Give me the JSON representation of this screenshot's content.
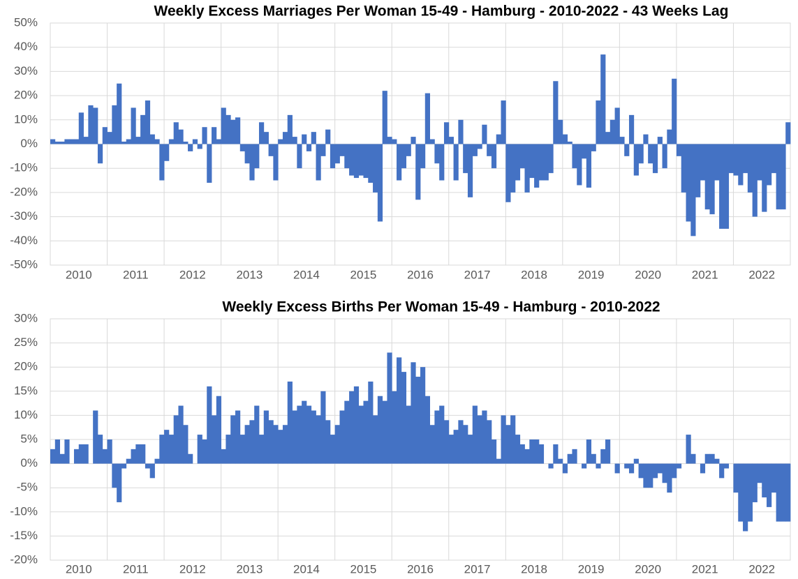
{
  "chart_data": [
    {
      "type": "bar",
      "title": "Weekly Excess Marriages Per Woman 15-49 - Hamburg - 2010-2022 - 43 Weeks Lag",
      "color": "#4472c4",
      "grid": true,
      "ylim": [
        -50,
        50
      ],
      "yticks": [
        {
          "value": -50,
          "label": "-50%"
        },
        {
          "value": -40,
          "label": "-40%"
        },
        {
          "value": -30,
          "label": "-30%"
        },
        {
          "value": -20,
          "label": "-20%"
        },
        {
          "value": -10,
          "label": "-10%"
        },
        {
          "value": 0,
          "label": "0%"
        },
        {
          "value": 10,
          "label": "10%"
        },
        {
          "value": 20,
          "label": "20%"
        },
        {
          "value": 30,
          "label": "30%"
        },
        {
          "value": 40,
          "label": "40%"
        },
        {
          "value": 50,
          "label": "50%"
        }
      ],
      "xlim": [
        2010,
        2023
      ],
      "xticks": [
        {
          "value": 2010.5,
          "label": "2010"
        },
        {
          "value": 2011.5,
          "label": "2011"
        },
        {
          "value": 2012.5,
          "label": "2012"
        },
        {
          "value": 2013.5,
          "label": "2013"
        },
        {
          "value": 2014.5,
          "label": "2014"
        },
        {
          "value": 2015.5,
          "label": "2015"
        },
        {
          "value": 2016.5,
          "label": "2016"
        },
        {
          "value": 2017.5,
          "label": "2017"
        },
        {
          "value": 2018.5,
          "label": "2018"
        },
        {
          "value": 2019.5,
          "label": "2019"
        },
        {
          "value": 2020.5,
          "label": "2020"
        },
        {
          "value": 2021.5,
          "label": "2021"
        },
        {
          "value": 2022.5,
          "label": "2022"
        }
      ],
      "values": [
        2,
        1,
        1,
        2,
        2,
        2,
        13,
        3,
        16,
        15,
        -8,
        7,
        5,
        16,
        25,
        1,
        2,
        15,
        3,
        12,
        18,
        4,
        2,
        -15,
        -7,
        2,
        9,
        6,
        1,
        -3,
        2,
        -2,
        7,
        -16,
        7,
        2,
        15,
        12,
        10,
        11,
        -3,
        -8,
        -15,
        -10,
        9,
        5,
        -5,
        -15,
        2,
        5,
        12,
        3,
        -10,
        4,
        -3,
        5,
        -15,
        -5,
        6,
        -10,
        -8,
        -5,
        -10,
        -13,
        -14,
        -13,
        -14,
        -16,
        -20,
        -32,
        22,
        3,
        2,
        -15,
        -10,
        -5,
        3,
        -23,
        -10,
        21,
        2,
        -8,
        -15,
        9,
        3,
        -15,
        10,
        -12,
        -22,
        -5,
        -2,
        8,
        -5,
        -10,
        4,
        18,
        -24,
        -20,
        -15,
        -10,
        -20,
        -14,
        -18,
        -15,
        -15,
        -12,
        26,
        10,
        4,
        1,
        -10,
        -17,
        -6,
        -18,
        -3,
        18,
        37,
        5,
        10,
        15,
        3,
        -5,
        12,
        -13,
        -8,
        4,
        -8,
        -12,
        3,
        -10,
        6,
        27,
        -5,
        -20,
        -32,
        -38,
        -22,
        -15,
        -27,
        -29,
        -15,
        -35,
        -35,
        -12,
        -13,
        -17,
        -12,
        -20,
        -30,
        -15,
        -28,
        -17,
        -12,
        -27,
        -27,
        9
      ]
    },
    {
      "type": "bar",
      "title": "Weekly Excess Births Per Woman 15-49 - Hamburg - 2010-2022",
      "color": "#4472c4",
      "grid": true,
      "ylim": [
        -20,
        30
      ],
      "yticks": [
        {
          "value": -20,
          "label": "-20%"
        },
        {
          "value": -15,
          "label": "-15%"
        },
        {
          "value": -10,
          "label": "-10%"
        },
        {
          "value": -5,
          "label": "-5%"
        },
        {
          "value": 0,
          "label": "0%"
        },
        {
          "value": 5,
          "label": "5%"
        },
        {
          "value": 10,
          "label": "10%"
        },
        {
          "value": 15,
          "label": "15%"
        },
        {
          "value": 20,
          "label": "20%"
        },
        {
          "value": 25,
          "label": "25%"
        },
        {
          "value": 30,
          "label": "30%"
        }
      ],
      "xlim": [
        2010,
        2023
      ],
      "xticks": [
        {
          "value": 2010.5,
          "label": "2010"
        },
        {
          "value": 2011.5,
          "label": "2011"
        },
        {
          "value": 2012.5,
          "label": "2012"
        },
        {
          "value": 2013.5,
          "label": "2013"
        },
        {
          "value": 2014.5,
          "label": "2014"
        },
        {
          "value": 2015.5,
          "label": "2015"
        },
        {
          "value": 2016.5,
          "label": "2016"
        },
        {
          "value": 2017.5,
          "label": "2017"
        },
        {
          "value": 2018.5,
          "label": "2018"
        },
        {
          "value": 2019.5,
          "label": "2019"
        },
        {
          "value": 2020.5,
          "label": "2020"
        },
        {
          "value": 2021.5,
          "label": "2021"
        },
        {
          "value": 2022.5,
          "label": "2022"
        }
      ],
      "values": [
        3,
        5,
        2,
        5,
        0,
        3,
        4,
        4,
        0,
        11,
        6,
        3,
        5,
        -5,
        -8,
        -1,
        1,
        3,
        4,
        4,
        -1,
        -3,
        1,
        6,
        7,
        6,
        10,
        12,
        8,
        2,
        0,
        6,
        5,
        16,
        10,
        14,
        3,
        6,
        10,
        11,
        6,
        8,
        9,
        12,
        6,
        11,
        9,
        8,
        7,
        8,
        17,
        11,
        12,
        13,
        12,
        11,
        10,
        15,
        9,
        6,
        8,
        11,
        13,
        15,
        16,
        12,
        13,
        17,
        10,
        14,
        13,
        23,
        15,
        22,
        19,
        12,
        21,
        18,
        20,
        14,
        8,
        11,
        12,
        9,
        6,
        7,
        9,
        8,
        6,
        12,
        10,
        11,
        9,
        5,
        1,
        10,
        8,
        10,
        6,
        4,
        3,
        5,
        5,
        4,
        0,
        -1,
        4,
        1,
        -2,
        2,
        3,
        0,
        -1,
        5,
        2,
        -1,
        3,
        5,
        0,
        -2,
        0,
        -1,
        -2,
        1,
        -3,
        -5,
        -5,
        -3,
        -2,
        -4,
        -6,
        -3,
        -1,
        0,
        6,
        2,
        0,
        -2,
        2,
        2,
        1,
        -3,
        -1,
        0,
        -6,
        -12,
        -14,
        -12,
        -8,
        -4,
        -7,
        -9,
        -6,
        -12,
        -12,
        -12
      ]
    }
  ]
}
